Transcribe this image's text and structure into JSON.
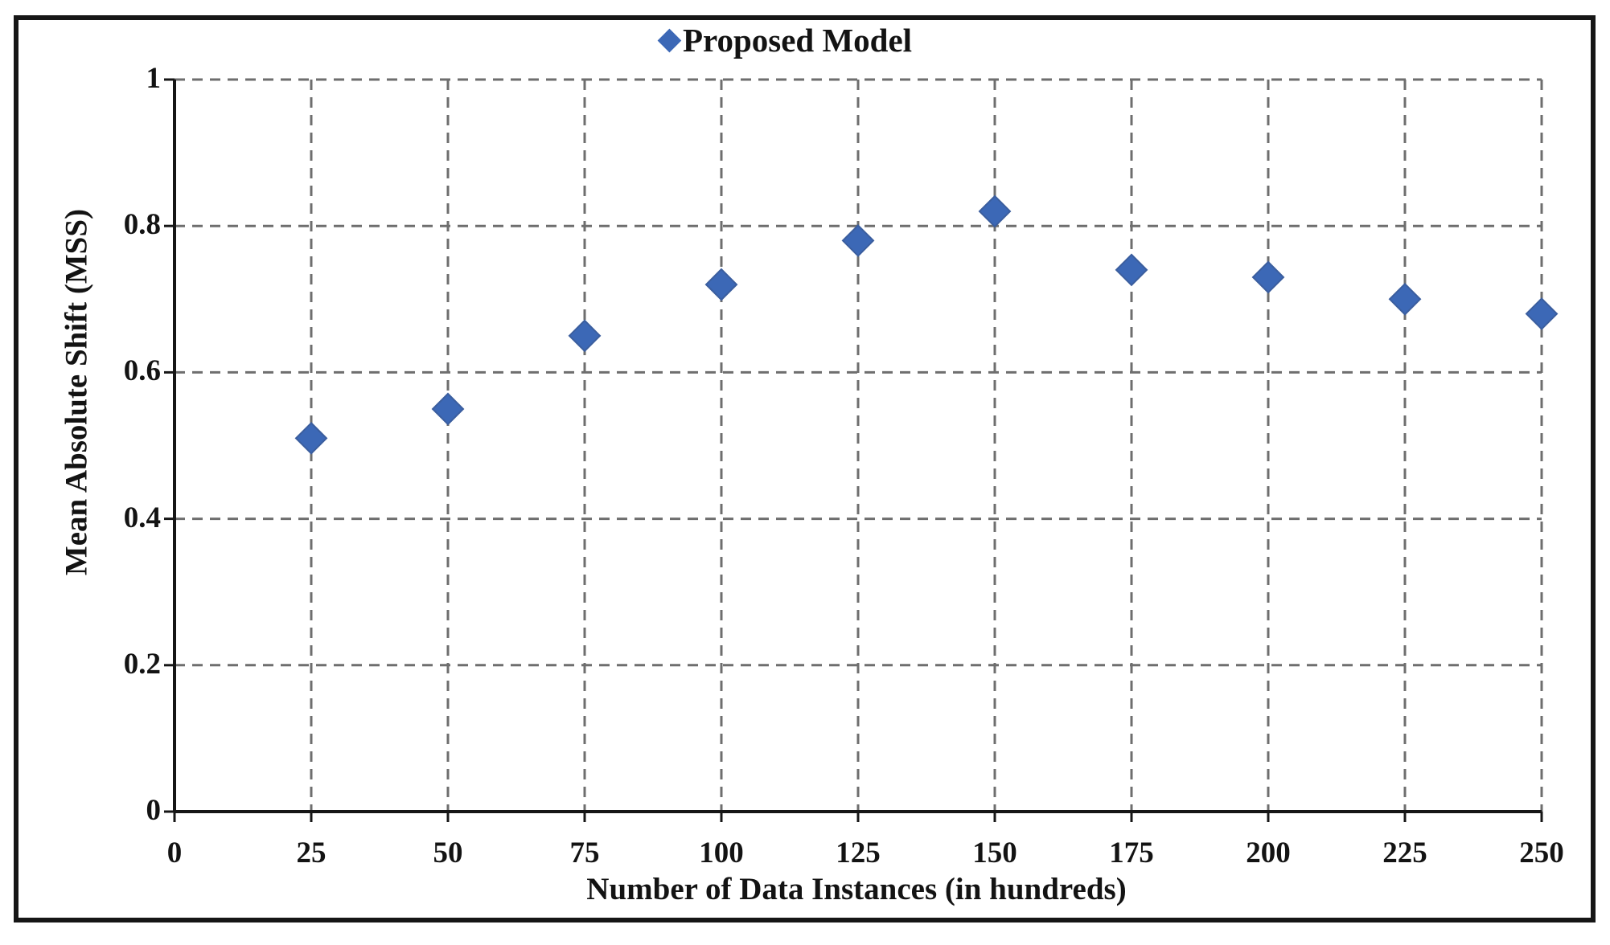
{
  "figure": {
    "legend": {
      "label": "Proposed Model",
      "marker_icon": "diamond-icon"
    }
  },
  "chart_data": {
    "type": "scatter",
    "title": "",
    "xlabel": "Number of Data Instances (in hundreds)",
    "ylabel": "Mean Absolute Shift (MSS)",
    "xlim": [
      0,
      250
    ],
    "ylim": [
      0,
      1
    ],
    "x_ticks": [
      0,
      25,
      50,
      75,
      100,
      125,
      150,
      175,
      200,
      225,
      250
    ],
    "x_tick_labels": [
      "0",
      "25",
      "50",
      "75",
      "100",
      "125",
      "150",
      "175",
      "200",
      "225",
      "250"
    ],
    "y_ticks": [
      0,
      0.2,
      0.4,
      0.6,
      0.8,
      1
    ],
    "y_tick_labels": [
      "0",
      "0.2",
      "0.4",
      "0.6",
      "0.8",
      "1"
    ],
    "grid": "dashed",
    "legend_position": "top-center",
    "series": [
      {
        "name": "Proposed Model",
        "marker": "diamond",
        "x": [
          25,
          50,
          75,
          100,
          125,
          150,
          175,
          200,
          225,
          250
        ],
        "y": [
          0.51,
          0.55,
          0.65,
          0.72,
          0.78,
          0.82,
          0.74,
          0.73,
          0.7,
          0.68
        ]
      }
    ],
    "colors": {
      "marker": "#3C68B6",
      "marker_edge": "#3B5E9E",
      "grid": "#6E6E6E",
      "axis": "#161616",
      "text": "#131313"
    }
  }
}
